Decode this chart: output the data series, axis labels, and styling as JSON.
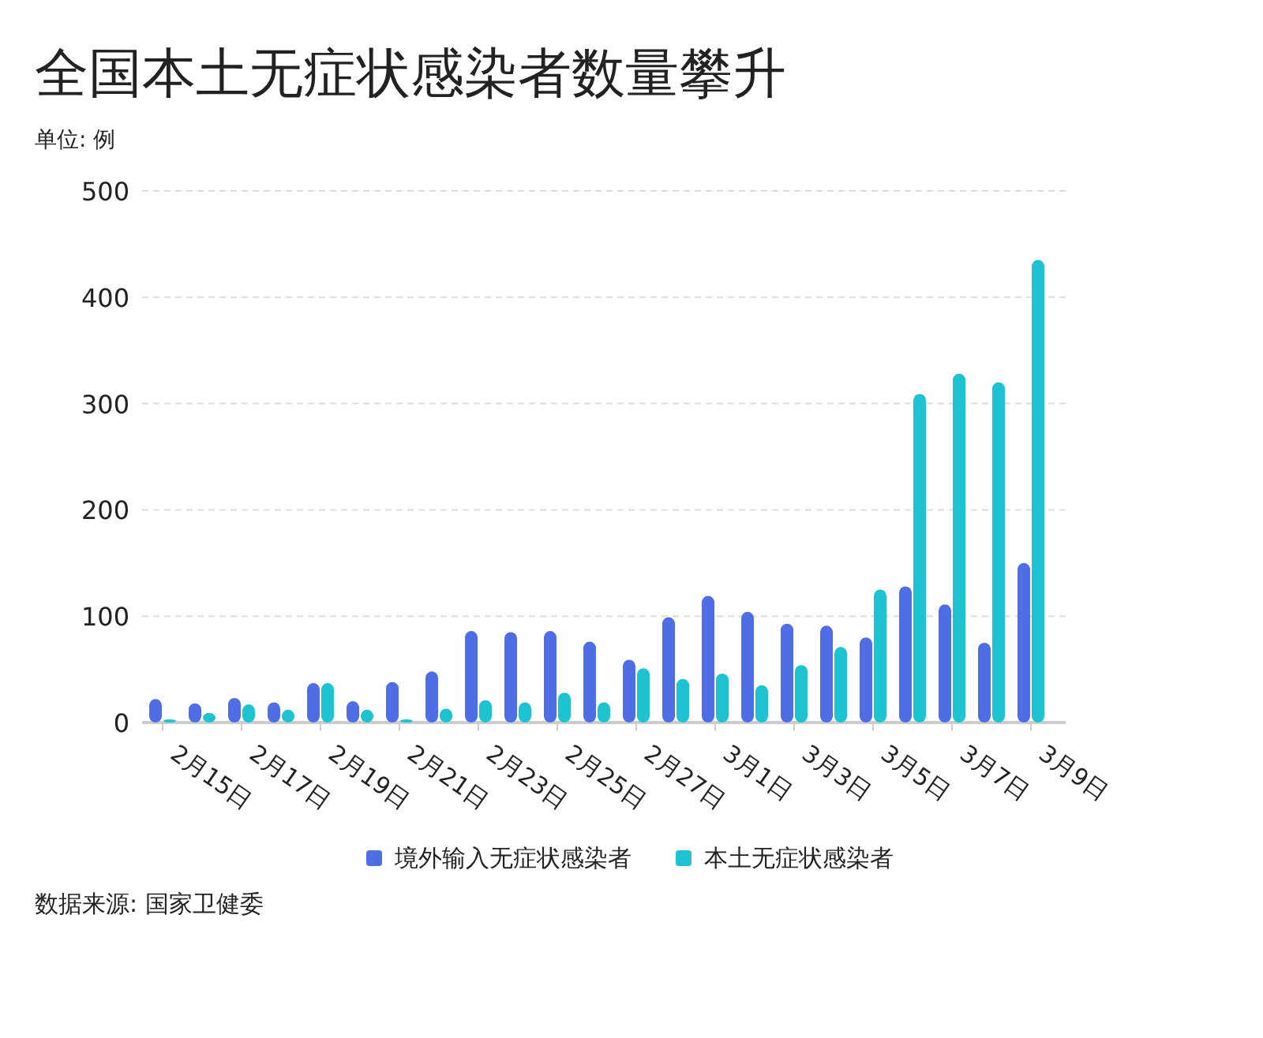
{
  "chart_data": {
    "type": "bar",
    "title": "全国本土无症状感染者数量攀升",
    "ylabel": "单位: 例",
    "categories": [
      "2月15日",
      null,
      "2月17日",
      null,
      "2月19日",
      null,
      "2月21日",
      null,
      "2月23日",
      null,
      "2月25日",
      null,
      "2月27日",
      null,
      "3月1日",
      null,
      "3月3日",
      null,
      "3月5日",
      null,
      "3月7日",
      null,
      "3月9日"
    ],
    "series": [
      {
        "name": "境外输入无症状感染者",
        "color": "#4f6ee6",
        "values": [
          22,
          18,
          23,
          19,
          37,
          20,
          38,
          48,
          86,
          85,
          86,
          76,
          59,
          99,
          119,
          104,
          93,
          91,
          80,
          128,
          111,
          75,
          150
        ]
      },
      {
        "name": "本土无症状感染者",
        "color": "#1ec3d2",
        "values": [
          3,
          9,
          17,
          12,
          37,
          12,
          3,
          13,
          21,
          19,
          28,
          19,
          51,
          41,
          46,
          35,
          54,
          71,
          125,
          309,
          328,
          320,
          435
        ]
      }
    ],
    "ylim": [
      0,
      500
    ],
    "yticks": [
      0,
      100,
      200,
      300,
      400,
      500
    ],
    "grid": "y",
    "legend": "bottom",
    "annotations": [
      "数据来源: 国家卫健委"
    ]
  }
}
